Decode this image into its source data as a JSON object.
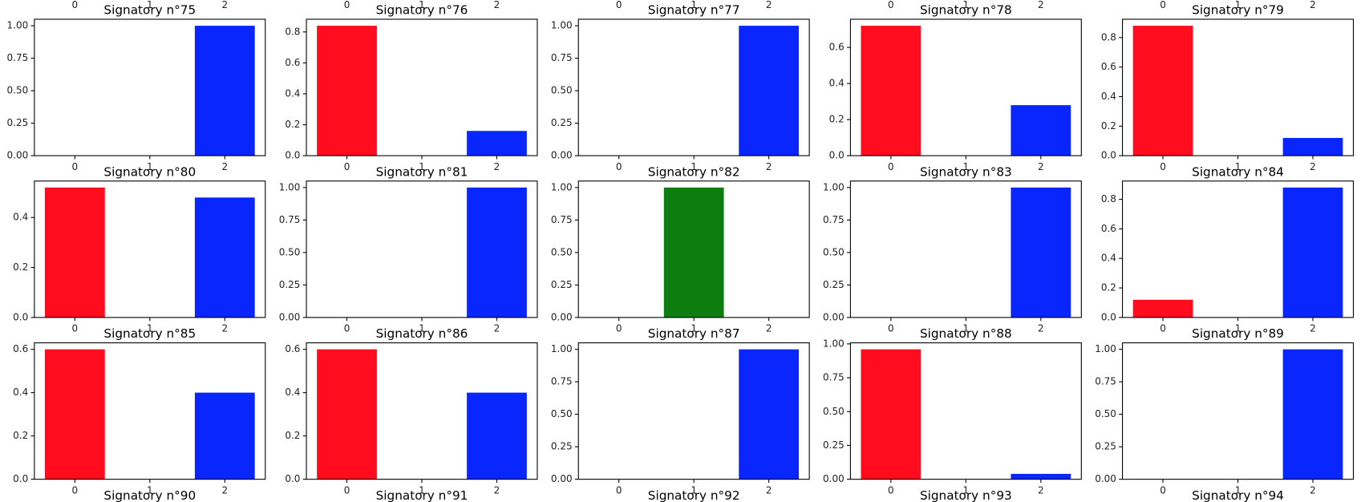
{
  "chart_data": [
    {
      "type": "bar",
      "categories": [
        0,
        1,
        2
      ]
    },
    {
      "type": "bar",
      "categories": [
        0,
        1,
        2
      ]
    },
    {
      "type": "bar",
      "categories": [
        0,
        1,
        2
      ]
    },
    {
      "type": "bar",
      "categories": [
        0,
        1,
        2
      ]
    },
    {
      "type": "bar",
      "categories": [
        0,
        1,
        2
      ]
    },
    {
      "type": "bar",
      "title": "Signatory n°75",
      "categories": [
        0,
        1,
        2
      ],
      "values": [
        0,
        0,
        1
      ],
      "colors": [
        "#ff0d1f",
        "#0e7d10",
        "#0a26ff"
      ],
      "ylim": [
        0,
        1.05
      ],
      "yticks": [
        {
          "value": 0,
          "label": "0.00"
        },
        {
          "value": 0.25,
          "label": "0.25"
        },
        {
          "value": 0.5,
          "label": "0.50"
        },
        {
          "value": 0.75,
          "label": "0.75"
        },
        {
          "value": 1,
          "label": "1.00"
        }
      ]
    },
    {
      "type": "bar",
      "title": "Signatory n°76",
      "categories": [
        0,
        1,
        2
      ],
      "values": [
        0.84,
        0,
        0.16
      ],
      "colors": [
        "#ff0d1f",
        "#0e7d10",
        "#0a26ff"
      ],
      "ylim": [
        0,
        0.882
      ],
      "yticks": [
        {
          "value": 0,
          "label": "0.0"
        },
        {
          "value": 0.2,
          "label": "0.2"
        },
        {
          "value": 0.4,
          "label": "0.4"
        },
        {
          "value": 0.6,
          "label": "0.6"
        },
        {
          "value": 0.8,
          "label": "0.8"
        }
      ]
    },
    {
      "type": "bar",
      "title": "Signatory n°77",
      "categories": [
        0,
        1,
        2
      ],
      "values": [
        0,
        0,
        1
      ],
      "colors": [
        "#ff0d1f",
        "#0e7d10",
        "#0a26ff"
      ],
      "ylim": [
        0,
        1.05
      ],
      "yticks": [
        {
          "value": 0,
          "label": "0.00"
        },
        {
          "value": 0.25,
          "label": "0.25"
        },
        {
          "value": 0.5,
          "label": "0.50"
        },
        {
          "value": 0.75,
          "label": "0.75"
        },
        {
          "value": 1,
          "label": "1.00"
        }
      ]
    },
    {
      "type": "bar",
      "title": "Signatory n°78",
      "categories": [
        0,
        1,
        2
      ],
      "values": [
        0.72,
        0,
        0.28
      ],
      "colors": [
        "#ff0d1f",
        "#0e7d10",
        "#0a26ff"
      ],
      "ylim": [
        0,
        0.756
      ],
      "yticks": [
        {
          "value": 0,
          "label": "0.0"
        },
        {
          "value": 0.2,
          "label": "0.2"
        },
        {
          "value": 0.4,
          "label": "0.4"
        },
        {
          "value": 0.6,
          "label": "0.6"
        }
      ]
    },
    {
      "type": "bar",
      "title": "Signatory n°79",
      "categories": [
        0,
        1,
        2
      ],
      "values": [
        0.88,
        0,
        0.12
      ],
      "colors": [
        "#ff0d1f",
        "#0e7d10",
        "#0a26ff"
      ],
      "ylim": [
        0,
        0.924
      ],
      "yticks": [
        {
          "value": 0,
          "label": "0.0"
        },
        {
          "value": 0.2,
          "label": "0.2"
        },
        {
          "value": 0.4,
          "label": "0.4"
        },
        {
          "value": 0.6,
          "label": "0.6"
        },
        {
          "value": 0.8,
          "label": "0.8"
        }
      ]
    },
    {
      "type": "bar",
      "title": "Signatory n°80",
      "categories": [
        0,
        1,
        2
      ],
      "values": [
        0.52,
        0,
        0.48
      ],
      "colors": [
        "#ff0d1f",
        "#0e7d10",
        "#0a26ff"
      ],
      "ylim": [
        0,
        0.546
      ],
      "yticks": [
        {
          "value": 0,
          "label": "0.0"
        },
        {
          "value": 0.2,
          "label": "0.2"
        },
        {
          "value": 0.4,
          "label": "0.4"
        }
      ]
    },
    {
      "type": "bar",
      "title": "Signatory n°81",
      "categories": [
        0,
        1,
        2
      ],
      "values": [
        0,
        0,
        1
      ],
      "colors": [
        "#ff0d1f",
        "#0e7d10",
        "#0a26ff"
      ],
      "ylim": [
        0,
        1.05
      ],
      "yticks": [
        {
          "value": 0,
          "label": "0.00"
        },
        {
          "value": 0.25,
          "label": "0.25"
        },
        {
          "value": 0.5,
          "label": "0.50"
        },
        {
          "value": 0.75,
          "label": "0.75"
        },
        {
          "value": 1,
          "label": "1.00"
        }
      ]
    },
    {
      "type": "bar",
      "title": "Signatory n°82",
      "categories": [
        0,
        1,
        2
      ],
      "values": [
        0,
        1,
        0
      ],
      "colors": [
        "#ff0d1f",
        "#0e7d10",
        "#0a26ff"
      ],
      "ylim": [
        0,
        1.05
      ],
      "yticks": [
        {
          "value": 0,
          "label": "0.00"
        },
        {
          "value": 0.25,
          "label": "0.25"
        },
        {
          "value": 0.5,
          "label": "0.50"
        },
        {
          "value": 0.75,
          "label": "0.75"
        },
        {
          "value": 1,
          "label": "1.00"
        }
      ]
    },
    {
      "type": "bar",
      "title": "Signatory n°83",
      "categories": [
        0,
        1,
        2
      ],
      "values": [
        0,
        0,
        1
      ],
      "colors": [
        "#ff0d1f",
        "#0e7d10",
        "#0a26ff"
      ],
      "ylim": [
        0,
        1.05
      ],
      "yticks": [
        {
          "value": 0,
          "label": "0.00"
        },
        {
          "value": 0.25,
          "label": "0.25"
        },
        {
          "value": 0.5,
          "label": "0.50"
        },
        {
          "value": 0.75,
          "label": "0.75"
        },
        {
          "value": 1,
          "label": "1.00"
        }
      ]
    },
    {
      "type": "bar",
      "title": "Signatory n°84",
      "categories": [
        0,
        1,
        2
      ],
      "values": [
        0.12,
        0,
        0.88
      ],
      "colors": [
        "#ff0d1f",
        "#0e7d10",
        "#0a26ff"
      ],
      "ylim": [
        0,
        0.924
      ],
      "yticks": [
        {
          "value": 0,
          "label": "0.0"
        },
        {
          "value": 0.2,
          "label": "0.2"
        },
        {
          "value": 0.4,
          "label": "0.4"
        },
        {
          "value": 0.6,
          "label": "0.6"
        },
        {
          "value": 0.8,
          "label": "0.8"
        }
      ]
    },
    {
      "type": "bar",
      "title": "Signatory n°85",
      "categories": [
        0,
        1,
        2
      ],
      "values": [
        0.6,
        0,
        0.4
      ],
      "colors": [
        "#ff0d1f",
        "#0e7d10",
        "#0a26ff"
      ],
      "ylim": [
        0,
        0.63
      ],
      "yticks": [
        {
          "value": 0,
          "label": "0.0"
        },
        {
          "value": 0.2,
          "label": "0.2"
        },
        {
          "value": 0.4,
          "label": "0.4"
        },
        {
          "value": 0.6,
          "label": "0.6"
        }
      ]
    },
    {
      "type": "bar",
      "title": "Signatory n°86",
      "categories": [
        0,
        1,
        2
      ],
      "values": [
        0.6,
        0,
        0.4
      ],
      "colors": [
        "#ff0d1f",
        "#0e7d10",
        "#0a26ff"
      ],
      "ylim": [
        0,
        0.63
      ],
      "yticks": [
        {
          "value": 0,
          "label": "0.0"
        },
        {
          "value": 0.2,
          "label": "0.2"
        },
        {
          "value": 0.4,
          "label": "0.4"
        },
        {
          "value": 0.6,
          "label": "0.6"
        }
      ]
    },
    {
      "type": "bar",
      "title": "Signatory n°87",
      "categories": [
        0,
        1,
        2
      ],
      "values": [
        0,
        0,
        1
      ],
      "colors": [
        "#ff0d1f",
        "#0e7d10",
        "#0a26ff"
      ],
      "ylim": [
        0,
        1.05
      ],
      "yticks": [
        {
          "value": 0,
          "label": "0.00"
        },
        {
          "value": 0.25,
          "label": "0.25"
        },
        {
          "value": 0.5,
          "label": "0.50"
        },
        {
          "value": 0.75,
          "label": "0.75"
        },
        {
          "value": 1,
          "label": "1.00"
        }
      ]
    },
    {
      "type": "bar",
      "title": "Signatory n°88",
      "categories": [
        0,
        1,
        2
      ],
      "values": [
        0.96,
        0,
        0.04
      ],
      "colors": [
        "#ff0d1f",
        "#0e7d10",
        "#0a26ff"
      ],
      "ylim": [
        0,
        1.008
      ],
      "yticks": [
        {
          "value": 0,
          "label": "0.00"
        },
        {
          "value": 0.25,
          "label": "0.25"
        },
        {
          "value": 0.5,
          "label": "0.50"
        },
        {
          "value": 0.75,
          "label": "0.75"
        },
        {
          "value": 1,
          "label": "1.00"
        }
      ]
    },
    {
      "type": "bar",
      "title": "Signatory n°89",
      "categories": [
        0,
        1,
        2
      ],
      "values": [
        0,
        0,
        1
      ],
      "colors": [
        "#ff0d1f",
        "#0e7d10",
        "#0a26ff"
      ],
      "ylim": [
        0,
        1.05
      ],
      "yticks": [
        {
          "value": 0,
          "label": "0.00"
        },
        {
          "value": 0.25,
          "label": "0.25"
        },
        {
          "value": 0.5,
          "label": "0.50"
        },
        {
          "value": 0.75,
          "label": "0.75"
        },
        {
          "value": 1,
          "label": "1.00"
        }
      ]
    },
    {
      "type": "bar",
      "title": "Signatory n°90"
    },
    {
      "type": "bar",
      "title": "Signatory n°91"
    },
    {
      "type": "bar",
      "title": "Signatory n°92"
    },
    {
      "type": "bar",
      "title": "Signatory n°93"
    },
    {
      "type": "bar",
      "title": "Signatory n°94"
    }
  ]
}
